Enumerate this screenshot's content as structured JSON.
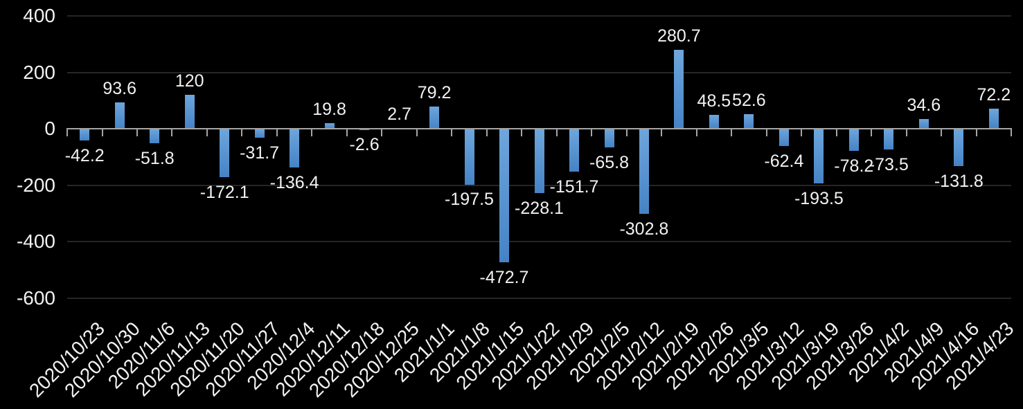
{
  "chart_data": {
    "type": "bar",
    "title": "",
    "xlabel": "",
    "ylabel": "",
    "categories": [
      "2020/10/23",
      "2020/10/30",
      "2020/11/6",
      "2020/11/13",
      "2020/11/20",
      "2020/11/27",
      "2020/12/4",
      "2020/12/11",
      "2020/12/18",
      "2020/12/25",
      "2021/1/1",
      "2021/1/8",
      "2021/1/15",
      "2021/1/22",
      "2021/1/29",
      "2021/2/5",
      "2021/2/12",
      "2021/2/19",
      "2021/2/26",
      "2021/3/5",
      "2021/3/12",
      "2021/3/19",
      "2021/3/26",
      "2021/4/2",
      "2021/4/9",
      "2021/4/16",
      "2021/4/23"
    ],
    "values": [
      -42.2,
      93.6,
      -51.8,
      120,
      -172.1,
      -31.7,
      -136.4,
      19.8,
      -2.6,
      2.7,
      79.2,
      -197.5,
      -472.7,
      -228.1,
      -151.7,
      -65.8,
      -302.8,
      280.7,
      48.5,
      52.6,
      -62.4,
      -193.5,
      -78.2,
      -73.5,
      34.6,
      -131.8,
      72.2
    ],
    "ylim": [
      -600,
      400
    ],
    "y_ticks": [
      400,
      200,
      0,
      -200,
      -400,
      -600
    ],
    "grid": "horizontal-major",
    "legend_position": "none",
    "data_labels": "outside-end",
    "x_label_rotation_deg": 45,
    "colors": {
      "background": "#000000",
      "bar_gradient_top": "#6EA6DC",
      "bar_gradient_bottom": "#4583C6",
      "gridline": "#262626",
      "axis_line": "#A6A6A6",
      "text": "#F2F2F2"
    }
  }
}
